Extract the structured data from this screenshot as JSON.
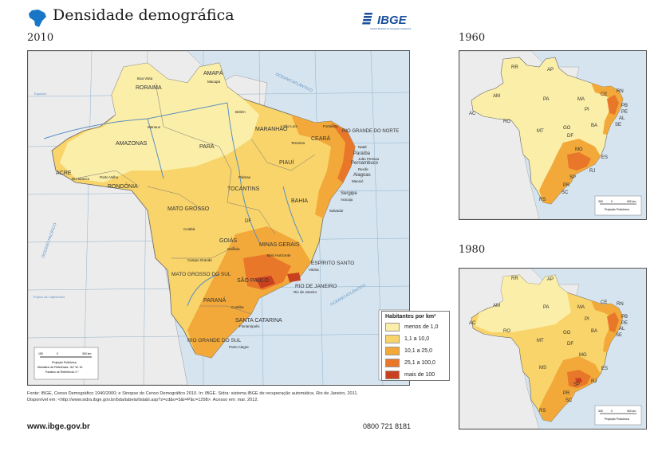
{
  "title": "Densidade demográfica",
  "maps": {
    "main": {
      "year": "2010",
      "states": [
        "RORAIMA",
        "AMAPÁ",
        "AMAZONAS",
        "PARÁ",
        "MARANHÃO",
        "CEARÁ",
        "RIO GRANDE DO NORTE",
        "Paraíba",
        "Pernambuco",
        "Alagoas",
        "Sergipe",
        "PIAUÍ",
        "ACRE",
        "RONDÔNIA",
        "TOCANTINS",
        "BAHIA",
        "MATO GROSSO",
        "DF",
        "GOIÁS",
        "MINAS GERAIS",
        "ESPÍRITO SANTO",
        "MATO GROSSO DO SUL",
        "SÃO PAULO",
        "RIO DE JANEIRO",
        "PARANÁ",
        "SANTA CATARINA",
        "RIO GRANDE DO SUL"
      ],
      "cities": [
        "Boa Vista",
        "Macapá",
        "Belém",
        "Manaus",
        "São Luís",
        "Fortaleza",
        "Teresina",
        "Natal",
        "João Pessoa",
        "Recife",
        "Maceió",
        "Aracaju",
        "Salvador",
        "Palmas",
        "Rio Branco",
        "Porto Velho",
        "Cuiabá",
        "Goiânia",
        "Belo Horizonte",
        "Vitória",
        "Campo Grande",
        "Rio de Janeiro",
        "Curitiba",
        "Florianópolis",
        "Porto Alegre"
      ],
      "ocean_labels": [
        "OCEANO ATLÂNTICO",
        "OCEANO PACÍFICO",
        "OCEANO ATLÂNTICO"
      ],
      "lines": [
        "Equador",
        "Trópico de Capricórnio"
      ],
      "scale_text": [
        "150",
        "0",
        "300 km",
        "Projeção Policônica",
        "Meridiano de Referência: -54° W. Gr.",
        "Paralelo de Referência: 0 °"
      ]
    },
    "m1960": {
      "year": "1960",
      "states": [
        "RR",
        "AP",
        "AM",
        "PA",
        "MA",
        "CE",
        "RN",
        "PB",
        "PE",
        "AL",
        "SE",
        "PI",
        "AC",
        "RO",
        "MT",
        "GO",
        "DF",
        "BA",
        "MG",
        "ES",
        "SP",
        "RJ",
        "PR",
        "SC",
        "RS"
      ],
      "scale_text": [
        "300",
        "0",
        "900 km",
        "Projeção Policônica"
      ]
    },
    "m1980": {
      "year": "1980",
      "states": [
        "RR",
        "AP",
        "AM",
        "PA",
        "MA",
        "CE",
        "RN",
        "PB",
        "PE",
        "AL",
        "SE",
        "PI",
        "AC",
        "RO",
        "MT",
        "GO",
        "DF",
        "BA",
        "MG",
        "ES",
        "MS",
        "SP",
        "RJ",
        "PR",
        "SC",
        "RS"
      ],
      "scale_text": [
        "300",
        "0",
        "900 km",
        "Projeção Policônica"
      ]
    }
  },
  "legend": {
    "title": "Habitantes por km²",
    "items": [
      {
        "label": "menos de 1,0",
        "color": "#fbeea8"
      },
      {
        "label": "1,1 a 10,0",
        "color": "#f8d46a"
      },
      {
        "label": "10,1 a 25,0",
        "color": "#f2a93a"
      },
      {
        "label": "25,1 a 100,0",
        "color": "#e8772a"
      },
      {
        "label": "mais de 100",
        "color": "#c8401f"
      }
    ]
  },
  "source": {
    "line1": "Fonte: IBGE, Censo Demográfico 1940/2000; e Sinopse do Censo Demográfico 2010. In: IBGE. Sidra: sistema IBGE de recuperação automática. Rio de Janeiro, 2011.",
    "line2": "Disponível em: <http://www.sidra.ibge.gov.br/bda/tabela/listabl.asp?z=cd&o=3&i=P&c=1298>. Acesso em: mar. 2012."
  },
  "footer": {
    "website": "www.ibge.gov.br",
    "phone": "0800 721 8181"
  },
  "logo": {
    "text": "IBGE",
    "subtitle": "Instituto Brasileiro de Geografia e Estatística"
  },
  "colors": {
    "water": "#d6e4ef",
    "neighbor": "#eeeeee",
    "border": "#555555"
  }
}
